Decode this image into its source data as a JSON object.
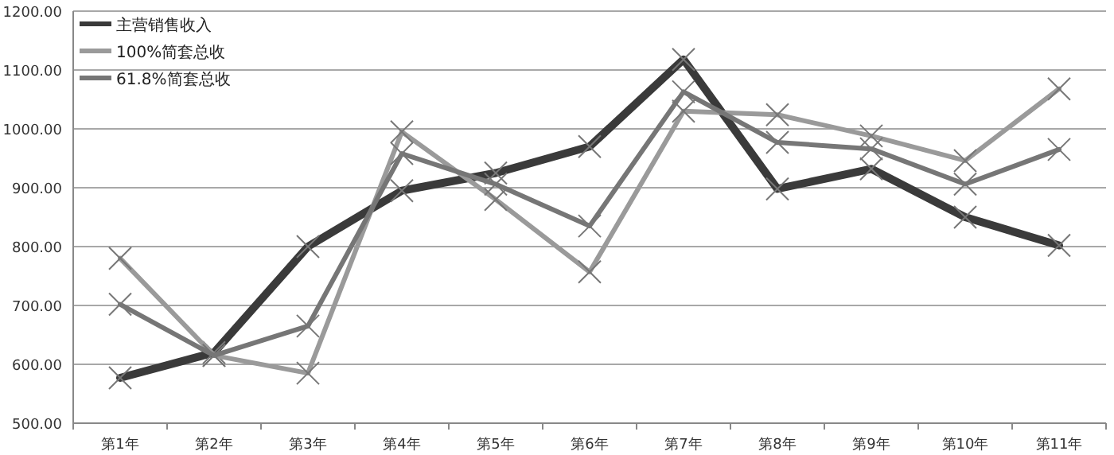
{
  "chart_data": {
    "type": "line",
    "categories": [
      "第1年",
      "第2年",
      "第3年",
      "第4年",
      "第5年",
      "第6年",
      "第7年",
      "第8年",
      "第9年",
      "第10年",
      "第11年"
    ],
    "series": [
      {
        "name": "主营销售收入",
        "color": "#3a3a3a",
        "values": [
          577,
          620,
          800,
          895,
          925,
          970,
          1118,
          898,
          932,
          850,
          802
        ]
      },
      {
        "name": "100%简套总收",
        "color": "#9a9a9a",
        "values": [
          780,
          615,
          585,
          995,
          880,
          757,
          1030,
          1024,
          988,
          946,
          1068
        ]
      },
      {
        "name": "61.8%简套总收",
        "color": "#767676",
        "values": [
          702,
          615,
          665,
          958,
          906,
          835,
          1063,
          977,
          966,
          906,
          965
        ]
      }
    ],
    "ylim": [
      500,
      1200
    ],
    "yticks": [
      {
        "value": 500,
        "label": "500.00"
      },
      {
        "value": 600,
        "label": "600.00"
      },
      {
        "value": 700,
        "label": "700.00"
      },
      {
        "value": 800,
        "label": "800.00"
      },
      {
        "value": 900,
        "label": "900.00"
      },
      {
        "value": 1000,
        "label": "1000.00"
      },
      {
        "value": 1100,
        "label": "1100.00"
      },
      {
        "value": 1200,
        "label": "1200.00"
      }
    ],
    "grid": "y",
    "legend": "top left",
    "marker": "cross",
    "line_style": "solid"
  }
}
